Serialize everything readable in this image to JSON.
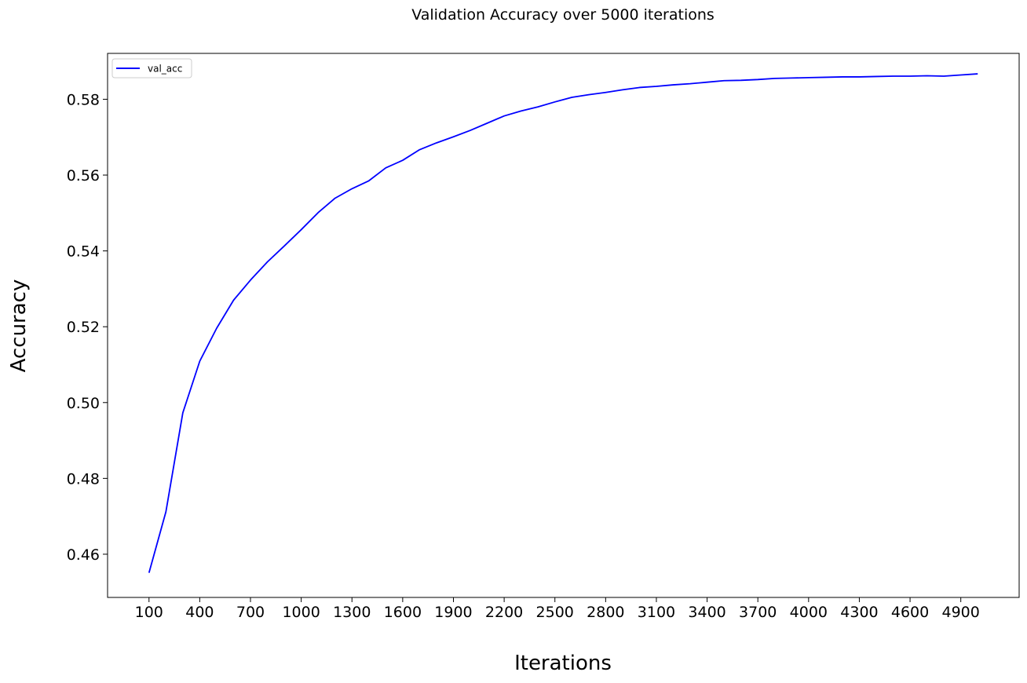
{
  "chart_data": {
    "type": "line",
    "title": "Validation Accuracy over 5000 iterations",
    "xlabel": "Iterations",
    "ylabel": "Accuracy",
    "xlim": [
      -145,
      5245
    ],
    "ylim": [
      0.4486,
      0.5921
    ],
    "xticks": [
      100,
      400,
      700,
      1000,
      1300,
      1600,
      1900,
      2200,
      2500,
      2800,
      3100,
      3400,
      3700,
      4000,
      4300,
      4600,
      4900
    ],
    "yticks": [
      0.46,
      0.48,
      0.5,
      0.52,
      0.54,
      0.56,
      0.58
    ],
    "ytick_labels": [
      "0.46",
      "0.48",
      "0.50",
      "0.52",
      "0.54",
      "0.56",
      "0.58"
    ],
    "grid": false,
    "legend": {
      "position": "top-left"
    },
    "series": [
      {
        "name": "val_acc",
        "color": "#0000ff",
        "x": [
          100,
          200,
          300,
          400,
          500,
          600,
          700,
          800,
          900,
          1000,
          1100,
          1200,
          1300,
          1400,
          1500,
          1600,
          1700,
          1800,
          1900,
          2000,
          2100,
          2200,
          2300,
          2400,
          2500,
          2600,
          2700,
          2800,
          2900,
          3000,
          3100,
          3200,
          3300,
          3400,
          3500,
          3600,
          3700,
          3800,
          3900,
          4000,
          4100,
          4200,
          4300,
          4400,
          4500,
          4600,
          4700,
          4800,
          4900,
          5000
        ],
        "y": [
          0.4551,
          0.4712,
          0.4973,
          0.5109,
          0.5196,
          0.527,
          0.5323,
          0.5371,
          0.5413,
          0.5456,
          0.5501,
          0.5539,
          0.5564,
          0.5585,
          0.5619,
          0.5639,
          0.5667,
          0.5685,
          0.5701,
          0.5718,
          0.5737,
          0.5756,
          0.5769,
          0.578,
          0.5793,
          0.5805,
          0.5812,
          0.5818,
          0.5825,
          0.5831,
          0.5834,
          0.5838,
          0.5841,
          0.5845,
          0.5849,
          0.585,
          0.5852,
          0.5855,
          0.5856,
          0.5857,
          0.5858,
          0.5859,
          0.5859,
          0.586,
          0.5861,
          0.5861,
          0.5862,
          0.5861,
          0.5864,
          0.5867
        ]
      }
    ]
  }
}
